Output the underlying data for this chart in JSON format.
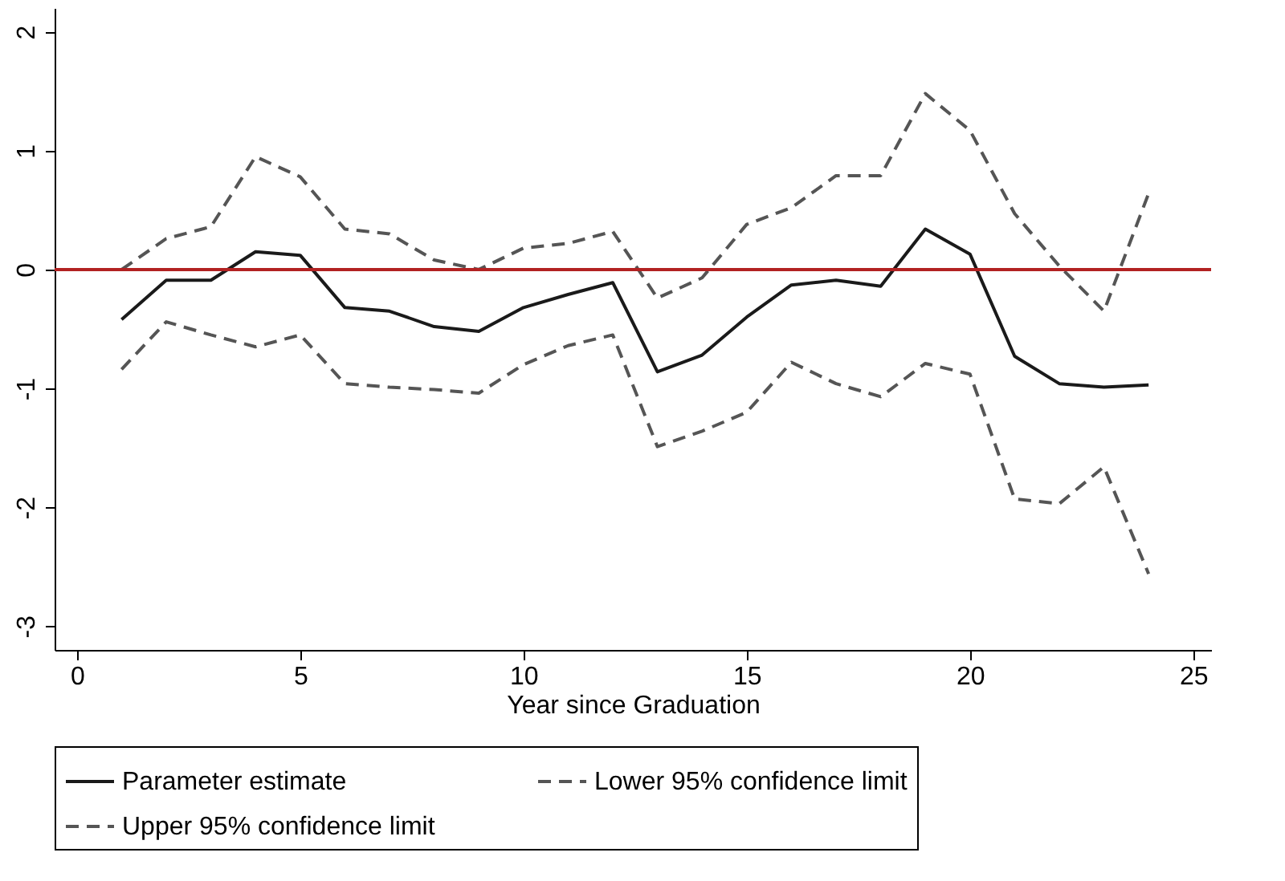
{
  "chart_data": {
    "type": "line",
    "xlabel": "Year since Graduation",
    "x": [
      1,
      2,
      3,
      4,
      5,
      6,
      7,
      8,
      9,
      10,
      11,
      12,
      13,
      14,
      15,
      16,
      17,
      18,
      19,
      20,
      21,
      22,
      23,
      24
    ],
    "series": [
      {
        "name": "Parameter estimate",
        "color": "#1a1a1a",
        "line_style": "solid",
        "values": [
          -0.42,
          -0.09,
          -0.09,
          0.15,
          0.12,
          -0.32,
          -0.35,
          -0.48,
          -0.52,
          -0.32,
          -0.21,
          -0.11,
          -0.86,
          -0.72,
          -0.4,
          -0.13,
          -0.09,
          -0.14,
          0.34,
          0.13,
          -0.73,
          -0.96,
          -0.99,
          -0.97
        ]
      },
      {
        "name": "Lower 95% confidence limit",
        "color": "#555555",
        "line_style": "dashed",
        "values": [
          -0.84,
          -0.44,
          -0.55,
          -0.65,
          -0.55,
          -0.96,
          -0.99,
          -1.01,
          -1.04,
          -0.8,
          -0.64,
          -0.55,
          -1.49,
          -1.36,
          -1.2,
          -0.78,
          -0.96,
          -1.07,
          -0.79,
          -0.88,
          -1.93,
          -1.97,
          -1.66,
          -2.56
        ]
      },
      {
        "name": "Upper 95% confidence limit",
        "color": "#555555",
        "line_style": "dashed",
        "values": [
          0.0,
          0.26,
          0.36,
          0.95,
          0.78,
          0.34,
          0.3,
          0.08,
          0.0,
          0.18,
          0.22,
          0.32,
          -0.24,
          -0.07,
          0.38,
          0.52,
          0.79,
          0.79,
          1.48,
          1.17,
          0.47,
          0.03,
          -0.35,
          0.64
        ]
      }
    ],
    "xlim": [
      -0.5,
      25.4
    ],
    "xticks": [
      0,
      5,
      10,
      15,
      20,
      25
    ],
    "ylim": [
      -3.2,
      2.2
    ],
    "yticks": [
      -3,
      -2,
      -1,
      0,
      1,
      2
    ],
    "ref_lines": [
      {
        "axis": "y",
        "value": 0,
        "color": "#b22222"
      }
    ],
    "grid": false,
    "legend": "bottom",
    "marker": "none"
  }
}
